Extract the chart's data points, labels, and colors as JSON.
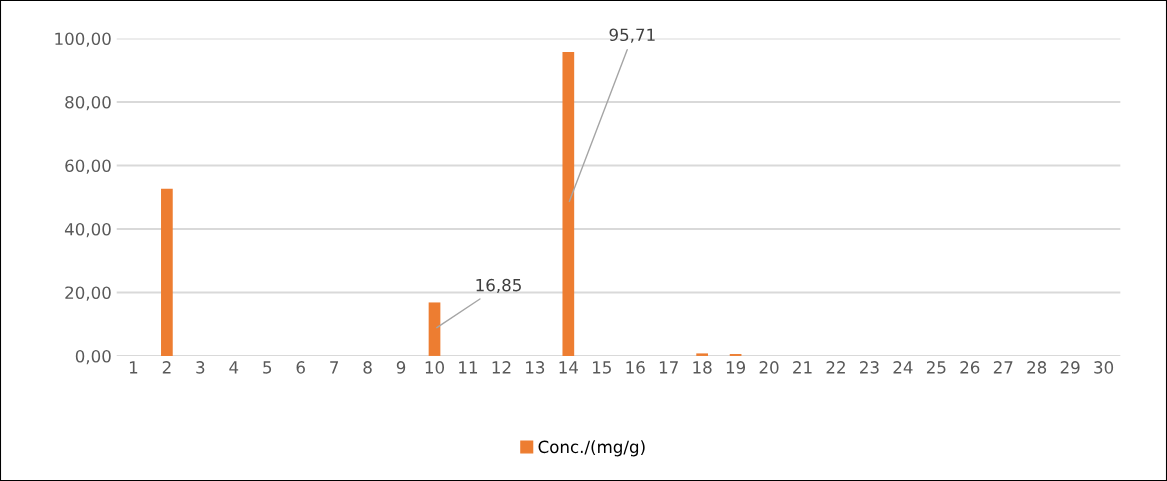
{
  "chart_data": {
    "type": "bar",
    "categories": [
      "1",
      "2",
      "3",
      "4",
      "5",
      "6",
      "7",
      "8",
      "9",
      "10",
      "11",
      "12",
      "13",
      "14",
      "15",
      "16",
      "17",
      "18",
      "19",
      "20",
      "21",
      "22",
      "23",
      "24",
      "25",
      "26",
      "27",
      "28",
      "29",
      "30"
    ],
    "series": [
      {
        "name": "Conc./(mg/g)",
        "color": "#ed7d31",
        "values": [
          0,
          52.7,
          0,
          0,
          0,
          0,
          0,
          0,
          0,
          16.85,
          0,
          0,
          0,
          95.71,
          0,
          0,
          0,
          0.8,
          0.6,
          0,
          0,
          0,
          0,
          0,
          0,
          0,
          0,
          0,
          0,
          null
        ],
        "value_labels": [
          null,
          null,
          null,
          null,
          null,
          null,
          null,
          null,
          null,
          "16,85",
          null,
          null,
          null,
          "95,71",
          null,
          null,
          null,
          null,
          null,
          null,
          null,
          null,
          null,
          null,
          null,
          null,
          null,
          null,
          null,
          null
        ]
      }
    ],
    "ylim": [
      0,
      100
    ],
    "yticks": [
      {
        "value": 0,
        "label": "0,00"
      },
      {
        "value": 20,
        "label": "20,00"
      },
      {
        "value": 40,
        "label": "40,00"
      },
      {
        "value": 60,
        "label": "60,00"
      },
      {
        "value": 80,
        "label": "80,00"
      },
      {
        "value": 100,
        "label": "100,00"
      }
    ],
    "grid": "y",
    "legend": "bottom"
  }
}
